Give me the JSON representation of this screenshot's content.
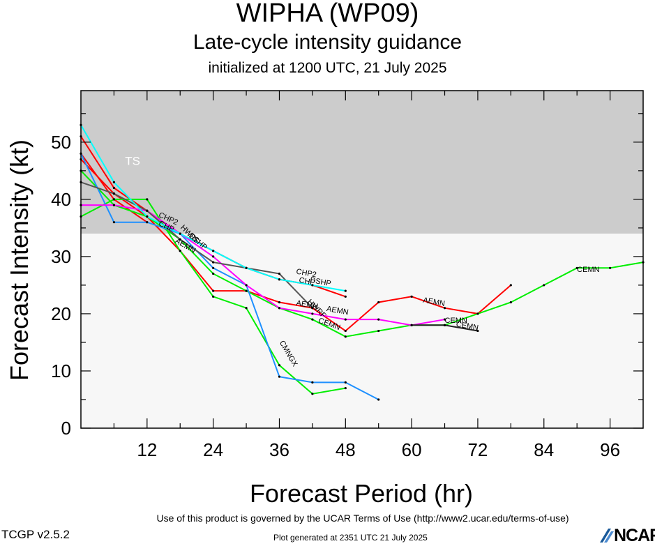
{
  "header": {
    "title": "WIPHA (WP09)",
    "subtitle": "Late-cycle intensity guidance",
    "initialized": "initialized at 1200 UTC, 21 July 2025"
  },
  "footer": {
    "terms": "Use of this product is governed by the UCAR Terms of Use (http://www2.ucar.edu/terms-of-use)",
    "version": "TCGP v2.5.2",
    "generated": "Plot generated at 2351 UTC   21 July 2025",
    "logo": "NCAR"
  },
  "chart_data": {
    "type": "line",
    "xlabel": "Forecast Period (hr)",
    "ylabel": "Forecast Intensity (kt)",
    "xlim": [
      0,
      102
    ],
    "ylim": [
      0,
      59
    ],
    "xticks": [
      "12",
      "24",
      "36",
      "48",
      "60",
      "72",
      "84",
      "96"
    ],
    "yticks": [
      "0",
      "10",
      "20",
      "30",
      "40",
      "50"
    ],
    "bands": [
      {
        "label": "TS",
        "from": 34,
        "to": 59,
        "color": "#cccccc"
      },
      {
        "label": "",
        "from": 0,
        "to": 34,
        "color": "#f7f7f7"
      }
    ],
    "series": [
      {
        "name": "",
        "color": "#ff0000",
        "x": [
          0,
          6,
          12,
          18,
          24,
          30,
          36,
          42,
          48
        ],
        "y": [
          51,
          42,
          38,
          34,
          31,
          28,
          26,
          25,
          23
        ]
      },
      {
        "name": "",
        "color": "#ff0000",
        "x": [
          0,
          6,
          12,
          18,
          24,
          30,
          36,
          42,
          48,
          54,
          60,
          66,
          72,
          78
        ],
        "y": [
          47,
          41,
          37,
          31,
          24,
          24,
          22,
          21,
          17,
          22,
          23,
          21,
          20,
          25
        ]
      },
      {
        "name": "",
        "color": "#ff0000",
        "x": [
          0,
          6,
          12
        ],
        "y": [
          48,
          40,
          36
        ]
      },
      {
        "name": "",
        "color": "#00ee00",
        "x": [
          0,
          6,
          12,
          18,
          24,
          30,
          36,
          42,
          48
        ],
        "y": [
          37,
          40,
          40,
          31,
          23,
          21,
          11,
          6,
          7
        ]
      },
      {
        "name": "",
        "color": "#00ee00",
        "x": [
          0,
          6,
          12,
          18,
          24,
          30,
          36,
          42,
          48,
          54,
          60,
          66,
          72,
          78,
          84,
          90,
          96,
          102
        ],
        "y": [
          45,
          39,
          37,
          33,
          27,
          24,
          21,
          19,
          16,
          17,
          18,
          18,
          20,
          22,
          25,
          28,
          28,
          29
        ]
      },
      {
        "name": "",
        "color": "#1e90ff",
        "x": [
          0,
          6,
          12,
          18,
          24,
          30,
          36,
          42,
          48,
          54
        ],
        "y": [
          48,
          36,
          36,
          34,
          28,
          25,
          9,
          8,
          8,
          5
        ]
      },
      {
        "name": "",
        "color": "#ff00ff",
        "x": [
          0,
          6,
          12,
          18,
          24,
          30,
          36,
          42,
          48,
          54,
          60,
          66
        ],
        "y": [
          39,
          39,
          38,
          34,
          30,
          25,
          21,
          20,
          19,
          19,
          18,
          19
        ]
      },
      {
        "name": "",
        "color": "#555555",
        "x": [
          0,
          6,
          12,
          18,
          24,
          30,
          36,
          42
        ],
        "y": [
          43,
          41,
          38,
          33,
          29,
          28,
          27,
          21
        ]
      },
      {
        "name": "",
        "color": "#00ffff",
        "x": [
          0,
          6,
          12,
          18,
          24,
          30,
          36,
          42,
          48
        ],
        "y": [
          53,
          43,
          37,
          34,
          31,
          28,
          26,
          25,
          24
        ]
      },
      {
        "name": "",
        "color": "#222222",
        "x": [
          60,
          66,
          72
        ],
        "y": [
          18,
          18,
          17
        ]
      }
    ],
    "annotations": [
      {
        "text": "TS",
        "x": 8,
        "y": 46,
        "rotate": 0,
        "color": "#ffffff"
      },
      {
        "text": "CHP2",
        "x": 14,
        "y": 37,
        "rotate": 25,
        "color": "#000000"
      },
      {
        "text": "CHP",
        "x": 14,
        "y": 35.5,
        "rotate": 25,
        "color": "#000000"
      },
      {
        "text": "AEMN",
        "x": 17,
        "y": 32.5,
        "rotate": 30,
        "color": "#000000"
      },
      {
        "text": "HWRF",
        "x": 18,
        "y": 35,
        "rotate": 45,
        "color": "#000000"
      },
      {
        "text": "DSHP",
        "x": 19.5,
        "y": 33.5,
        "rotate": 40,
        "color": "#000000"
      },
      {
        "text": "CHP2",
        "x": 39,
        "y": 27,
        "rotate": 10,
        "color": "#000000"
      },
      {
        "text": "DSHP",
        "x": 41.5,
        "y": 25.5,
        "rotate": 10,
        "color": "#000000"
      },
      {
        "text": "CHP",
        "x": 39.5,
        "y": 25.5,
        "rotate": 10,
        "color": "#000000"
      },
      {
        "text": "AEMN",
        "x": 39,
        "y": 21.5,
        "rotate": 10,
        "color": "#000000"
      },
      {
        "text": "HWRF",
        "x": 41,
        "y": 22,
        "rotate": 45,
        "color": "#000000"
      },
      {
        "text": "AEMN",
        "x": 44.5,
        "y": 20.5,
        "rotate": 10,
        "color": "#000000"
      },
      {
        "text": "CEMN",
        "x": 43,
        "y": 18.5,
        "rotate": 20,
        "color": "#000000"
      },
      {
        "text": "CMNGX",
        "x": 36,
        "y": 15,
        "rotate": 60,
        "color": "#000000"
      },
      {
        "text": "AEMN",
        "x": 62,
        "y": 22,
        "rotate": 10,
        "color": "#000000"
      },
      {
        "text": "CEMN",
        "x": 66,
        "y": 18.4,
        "rotate": 0,
        "color": "#000000"
      },
      {
        "text": "CEMN",
        "x": 68,
        "y": 17.8,
        "rotate": 10,
        "color": "#000000"
      },
      {
        "text": "CEMN",
        "x": 90,
        "y": 27.3,
        "rotate": 0,
        "color": "#000000"
      }
    ]
  }
}
